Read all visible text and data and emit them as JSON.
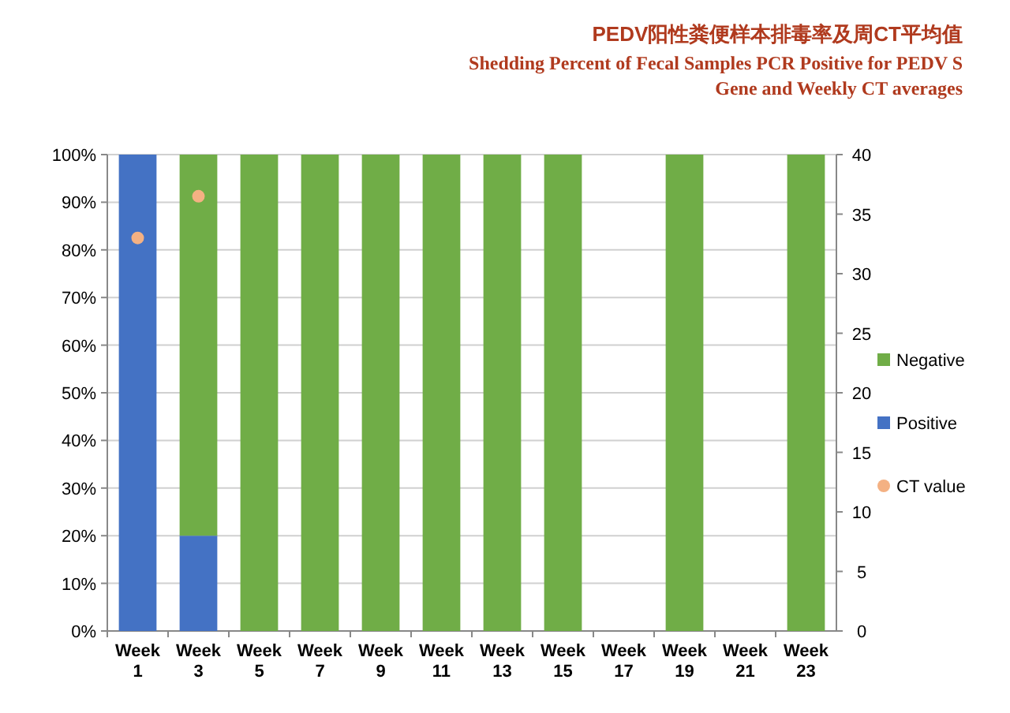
{
  "chart_data": {
    "type": "bar",
    "stacked": true,
    "title": "PEDV阳性粪便样本排毒率及周CT平均值",
    "subtitle": "Shedding Percent of Fecal Samples PCR Positive for PEDV S Gene and Weekly CT averages",
    "categories": [
      "Week 1",
      "Week 3",
      "Week 5",
      "Week 7",
      "Week 9",
      "Week 11",
      "Week 13",
      "Week 15",
      "Week 17",
      "Week 19",
      "Week 21",
      "Week 23"
    ],
    "series": [
      {
        "name": "Positive",
        "color": "#4472c4",
        "values": [
          100,
          20,
          0,
          0,
          0,
          0,
          0,
          0,
          0,
          0,
          0,
          0
        ]
      },
      {
        "name": "Negative",
        "color": "#70ad47",
        "values": [
          0,
          80,
          100,
          100,
          100,
          100,
          100,
          100,
          0,
          100,
          0,
          100
        ]
      },
      {
        "name": "CT value",
        "type": "scatter",
        "axis": "y2",
        "color": "#f4b183",
        "values": [
          33,
          36.5,
          null,
          null,
          null,
          null,
          null,
          null,
          null,
          null,
          null,
          null
        ]
      }
    ],
    "ylim": [
      0,
      100
    ],
    "yticks": [
      {
        "value": 0,
        "label": "0%"
      },
      {
        "value": 10,
        "label": "10%"
      },
      {
        "value": 20,
        "label": "20%"
      },
      {
        "value": 30,
        "label": "30%"
      },
      {
        "value": 40,
        "label": "40%"
      },
      {
        "value": 50,
        "label": "50%"
      },
      {
        "value": 60,
        "label": "60%"
      },
      {
        "value": 70,
        "label": "70%"
      },
      {
        "value": 80,
        "label": "80%"
      },
      {
        "value": 90,
        "label": "90%"
      },
      {
        "value": 100,
        "label": "100%"
      }
    ],
    "y2lim": [
      0,
      40
    ],
    "y2ticks": [
      0,
      5,
      10,
      15,
      20,
      25,
      30,
      35,
      40
    ],
    "grid": "y",
    "legend": "right",
    "marker": "circle"
  }
}
